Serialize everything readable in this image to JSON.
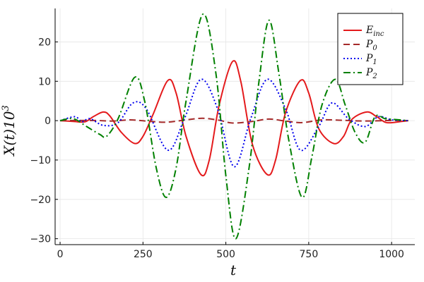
{
  "chart_data": {
    "type": "line",
    "title": "",
    "xlabel": "t",
    "ylabel": "X(t)10",
    "ylabel_superscript": "3",
    "xlim": [
      -15,
      1070
    ],
    "ylim": [
      -31.5,
      28.5
    ],
    "x_ticks": [
      0,
      250,
      500,
      750,
      1000
    ],
    "x_tick_labels": [
      "0",
      "250",
      "500",
      "750",
      "1000"
    ],
    "y_ticks": [
      -30,
      -20,
      -10,
      0,
      10,
      20
    ],
    "y_tick_labels": [
      "−30",
      "−20",
      "−10",
      "0",
      "10",
      "20"
    ],
    "grid": true,
    "legend_position": "top-right",
    "series": [
      {
        "name": "E",
        "name_sub": "inc",
        "color": "#e41a1c",
        "dash": "solid",
        "x": [
          0,
          40,
          75,
          100,
          130,
          150,
          185,
          225,
          250,
          280,
          325,
          350,
          380,
          425,
          450,
          480,
          520,
          545,
          580,
          625,
          650,
          680,
          725,
          750,
          780,
          825,
          855,
          880,
          925,
          955,
          985,
          1030,
          1050
        ],
        "y": [
          0,
          -0.2,
          -0.3,
          1.0,
          2.2,
          1.2,
          -3.0,
          -5.8,
          -4.0,
          1.5,
          10.2,
          7.0,
          -4.0,
          -13.7,
          -10.0,
          4.0,
          15.0,
          10.0,
          -6.0,
          -13.7,
          -10.0,
          2.0,
          10.2,
          7.0,
          -2.0,
          -5.8,
          -4.0,
          0.3,
          2.2,
          1.0,
          -0.5,
          -0.2,
          0
        ]
      },
      {
        "name": "P",
        "name_sub": "0",
        "color": "#a52a2a",
        "dash": "dashed",
        "x": [
          0,
          100,
          160,
          210,
          260,
          320,
          380,
          430,
          480,
          520,
          580,
          630,
          680,
          730,
          790,
          850,
          920,
          1000,
          1050
        ],
        "y": [
          0,
          0.05,
          -0.1,
          0.2,
          -0.1,
          -0.4,
          0.2,
          0.6,
          0.1,
          -0.6,
          -0.2,
          0.4,
          -0.1,
          -0.5,
          0.2,
          0.1,
          -0.1,
          0.05,
          0
        ]
      },
      {
        "name": "P",
        "name_sub": "1",
        "color": "#0000ee",
        "dash": "dotted",
        "x": [
          0,
          45,
          65,
          90,
          130,
          175,
          220,
          260,
          325,
          375,
          425,
          475,
          525,
          575,
          625,
          680,
          725,
          780,
          820,
          870,
          920,
          960,
          1000,
          1050
        ],
        "y": [
          0,
          1.0,
          -0.3,
          0.5,
          -1.2,
          -0.5,
          4.5,
          3.0,
          -7.5,
          0.5,
          10.5,
          3.0,
          -11.7,
          0.5,
          10.5,
          3.0,
          -7.5,
          -1.5,
          4.5,
          0.5,
          -1.5,
          1.0,
          0.2,
          0
        ]
      },
      {
        "name": "P",
        "name_sub": "2",
        "color": "#008000",
        "dash": "dashdot",
        "x": [
          0,
          40,
          80,
          120,
          140,
          175,
          225,
          255,
          290,
          320,
          350,
          380,
          430,
          470,
          500,
          530,
          570,
          600,
          630,
          660,
          690,
          730,
          760,
          790,
          830,
          860,
          890,
          920,
          950,
          980,
          1010,
          1050
        ],
        "y": [
          0,
          0.5,
          -1.5,
          -3.5,
          -4.0,
          0.5,
          11.0,
          5.0,
          -12.0,
          -19.5,
          -12.0,
          5.0,
          27.0,
          12.0,
          -14.0,
          -30.0,
          -12.0,
          10.0,
          25.5,
          12.0,
          -5.0,
          -19.5,
          -9.0,
          4.0,
          10.5,
          4.0,
          -3.0,
          -5.5,
          1.0,
          0.5,
          0.3,
          0
        ]
      }
    ]
  }
}
